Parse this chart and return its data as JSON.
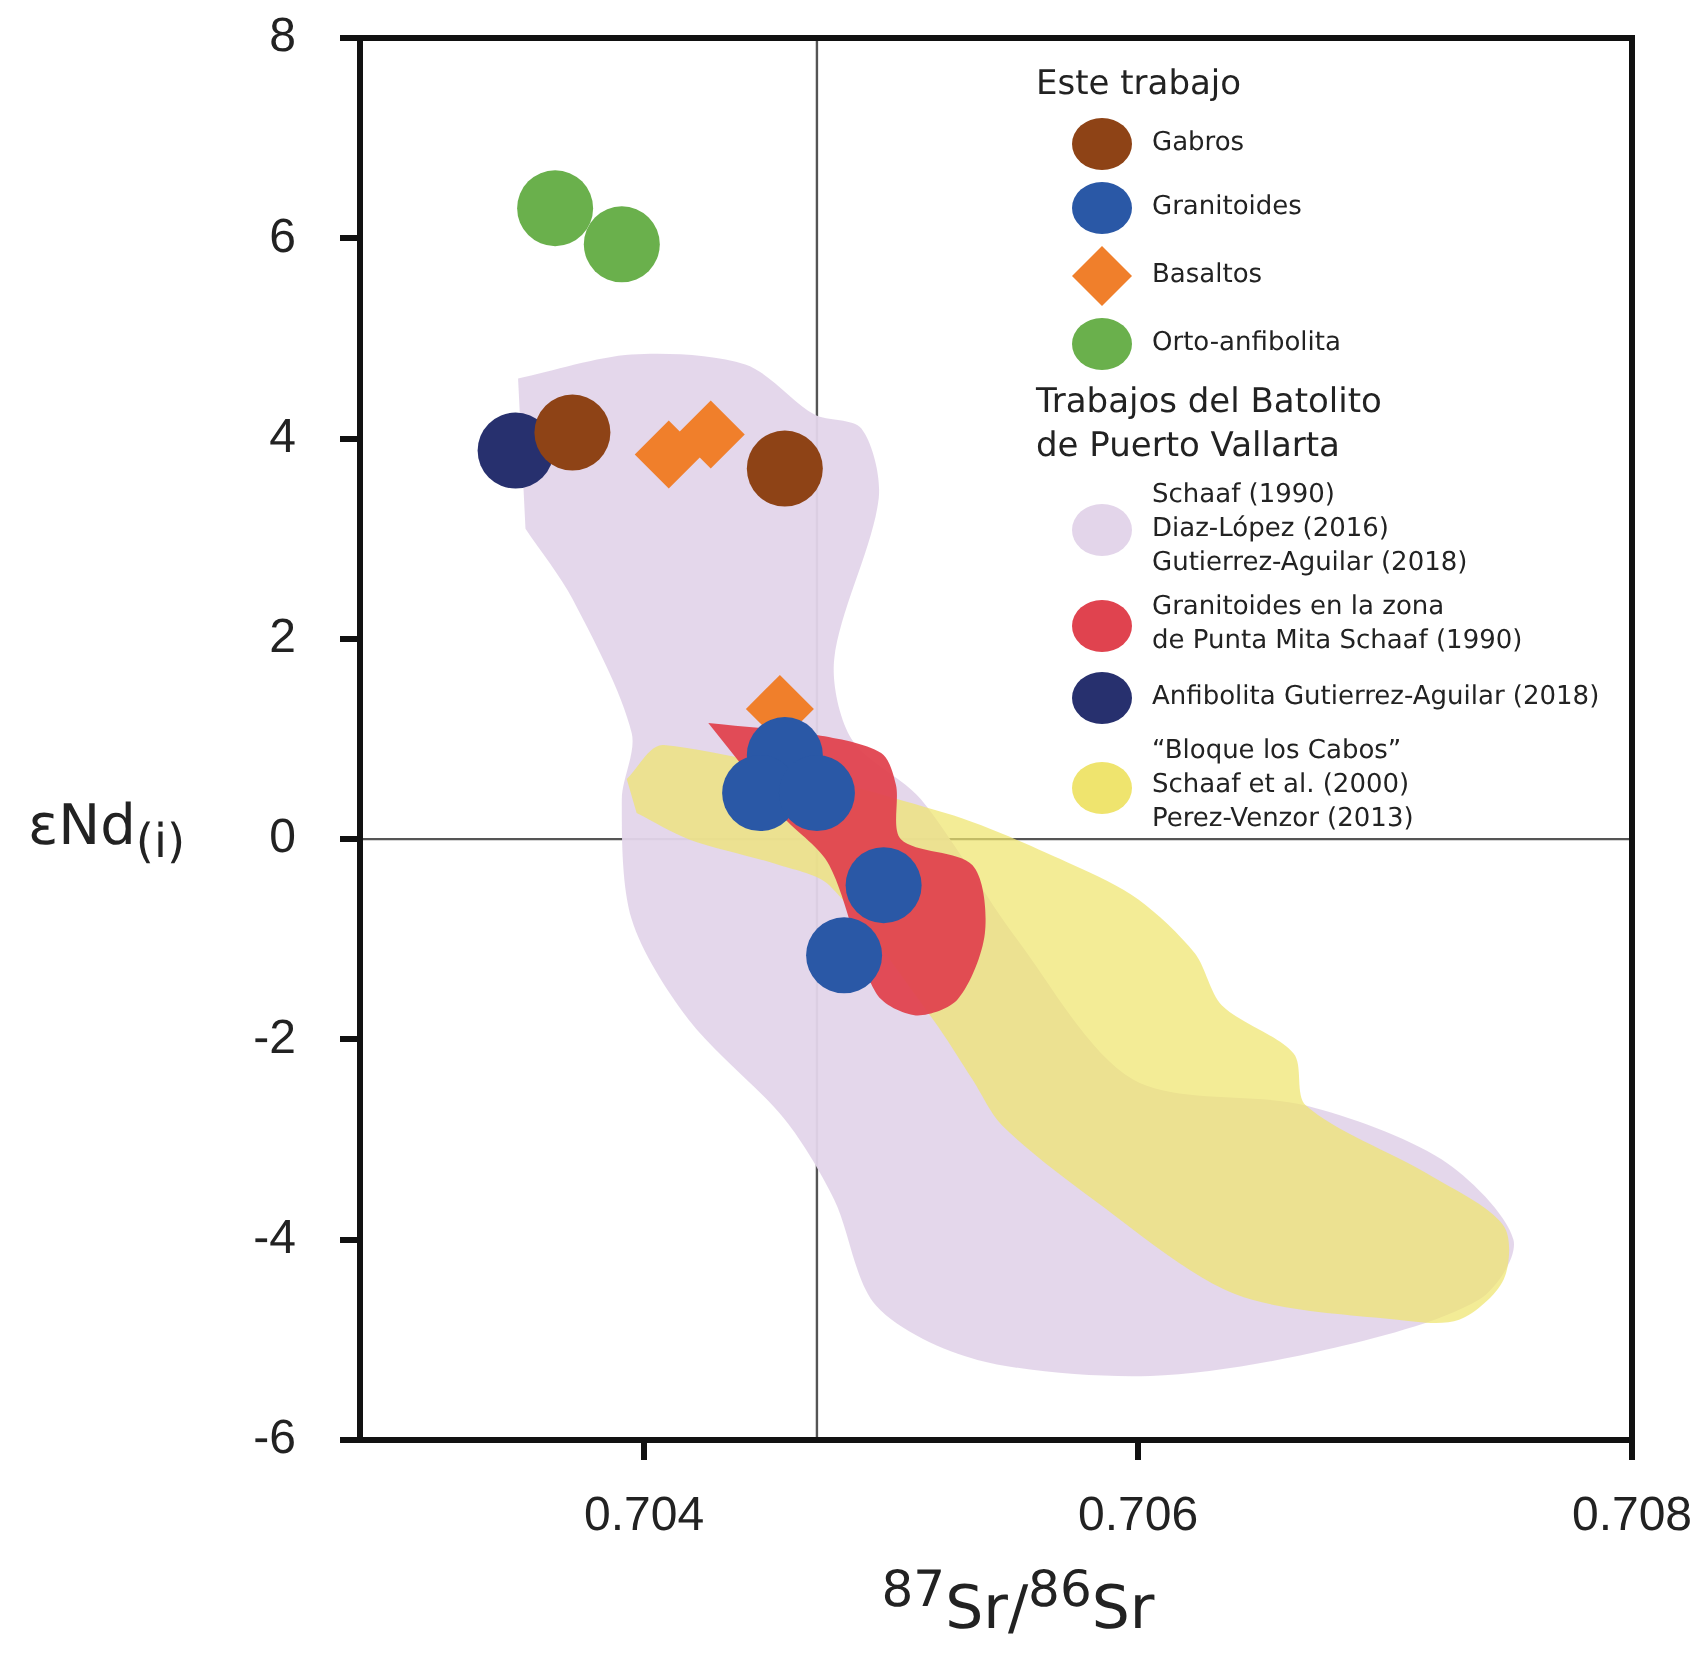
{
  "chart_data": {
    "type": "scatter",
    "xlabel": "$^{87}$Sr/$^{86}$Sr",
    "ylabel": "εNd$_{(i)}$",
    "legend_title": "Este trabajo",
    "annotations": [
      "Trabajos del Batolito\nde Puerto Vallarta"
    ],
    "xlim": [
      0.70285,
      0.708
    ],
    "ylim": [
      -6,
      8
    ],
    "xticks": [
      0.704,
      0.706,
      0.708
    ],
    "yticks": [
      -6,
      -4,
      -2,
      0,
      2,
      4,
      6,
      8
    ],
    "grid": false,
    "legend": "top right",
    "ref_lines": [
      {
        "axis": "x",
        "value": 0.7047,
        "color": "#555555"
      },
      {
        "axis": "y",
        "value": 0,
        "color": "#555555"
      }
    ],
    "series": [
      {
        "name": "Gabros",
        "type": "scatter",
        "marker": "circle",
        "color": "#8e4316",
        "x": [
          0.70371,
          0.70457
        ],
        "values": [
          4.06,
          3.7
        ]
      },
      {
        "name": "Granitoides",
        "type": "scatter",
        "marker": "circle",
        "color": "#2a58a6",
        "x": [
          0.70457,
          0.70447,
          0.7047,
          0.70497,
          0.70481
        ],
        "values": [
          0.84,
          0.46,
          0.46,
          -0.46,
          -1.16
        ]
      },
      {
        "name": "Basaltos",
        "type": "scatter",
        "marker": "diamond",
        "color": "#f07f2b",
        "x": [
          0.7041,
          0.70427,
          0.70455
        ],
        "values": [
          3.84,
          4.04,
          1.3
        ]
      },
      {
        "name": "Orto-anfibolita",
        "type": "scatter",
        "marker": "circle",
        "color": "#6ab04c",
        "x": [
          0.70364,
          0.70391
        ],
        "values": [
          6.3,
          5.94
        ]
      },
      {
        "name": "Schaaf (1990)\nDiaz-López (2016)\nGutierrez-Aguilar (2018)",
        "type": "area",
        "color": "#e3d5ea",
        "x": [
          0.70349,
          0.70395,
          0.70441,
          0.70469,
          0.70488,
          0.70495,
          0.70477,
          0.70484,
          0.70512,
          0.70551,
          0.70598,
          0.70668,
          0.70723,
          0.70752,
          0.70738,
          0.70676,
          0.70605,
          0.70535,
          0.70494,
          0.70477,
          0.70457,
          0.70418,
          0.70395,
          0.70391,
          0.70395,
          0.70371,
          0.70352
        ],
        "values": [
          4.6,
          4.84,
          4.74,
          4.24,
          4.1,
          3.4,
          1.8,
          1.0,
          0.4,
          -1.0,
          -2.4,
          -2.66,
          -3.2,
          -4.0,
          -4.6,
          -5.1,
          -5.36,
          -5.2,
          -4.66,
          -3.6,
          -2.8,
          -1.8,
          -0.8,
          0.4,
          1.06,
          2.4,
          3.1
        ]
      },
      {
        "name": "Granitoides en la zona\nde Punta Mita Schaaf (1990)",
        "type": "area",
        "color": "#e0434f",
        "x": [
          0.70426,
          0.7047,
          0.70496,
          0.70502,
          0.70504,
          0.70533,
          0.70538,
          0.70527,
          0.7051,
          0.70494,
          0.70475,
          0.70457
        ],
        "values": [
          1.16,
          1.04,
          0.86,
          0.54,
          0,
          -0.26,
          -0.94,
          -1.6,
          -1.76,
          -1.54,
          -0.26,
          0.2
        ]
      },
      {
        "name": "Anfibolita Gutierrez-Aguilar (2018)",
        "type": "scatter",
        "marker": "circle",
        "color": "#27306e",
        "x": [
          0.70348
        ],
        "values": [
          3.88
        ]
      },
      {
        "name": "“Bloque los Cabos”\nSchaaf et al. (2000)\nPerez-Venzor (2013)",
        "type": "area",
        "color": "#efe46e",
        "x": [
          0.70393,
          0.70408,
          0.70522,
          0.70574,
          0.706,
          0.70623,
          0.70634,
          0.70663,
          0.70668,
          0.70717,
          0.70748,
          0.70748,
          0.7073,
          0.70705,
          0.70639,
          0.70582,
          0.70545,
          0.70533,
          0.70517,
          0.70475,
          0.70455,
          0.70418,
          0.70397
        ],
        "values": [
          0.6,
          0.94,
          0.26,
          -0.26,
          -0.6,
          -1.14,
          -1.66,
          -2.14,
          -2.66,
          -3.34,
          -3.86,
          -4.4,
          -4.8,
          -4.8,
          -4.54,
          -3.6,
          -2.86,
          -2.4,
          -1.8,
          -0.46,
          -0.26,
          0,
          0.26
        ]
      }
    ]
  }
}
